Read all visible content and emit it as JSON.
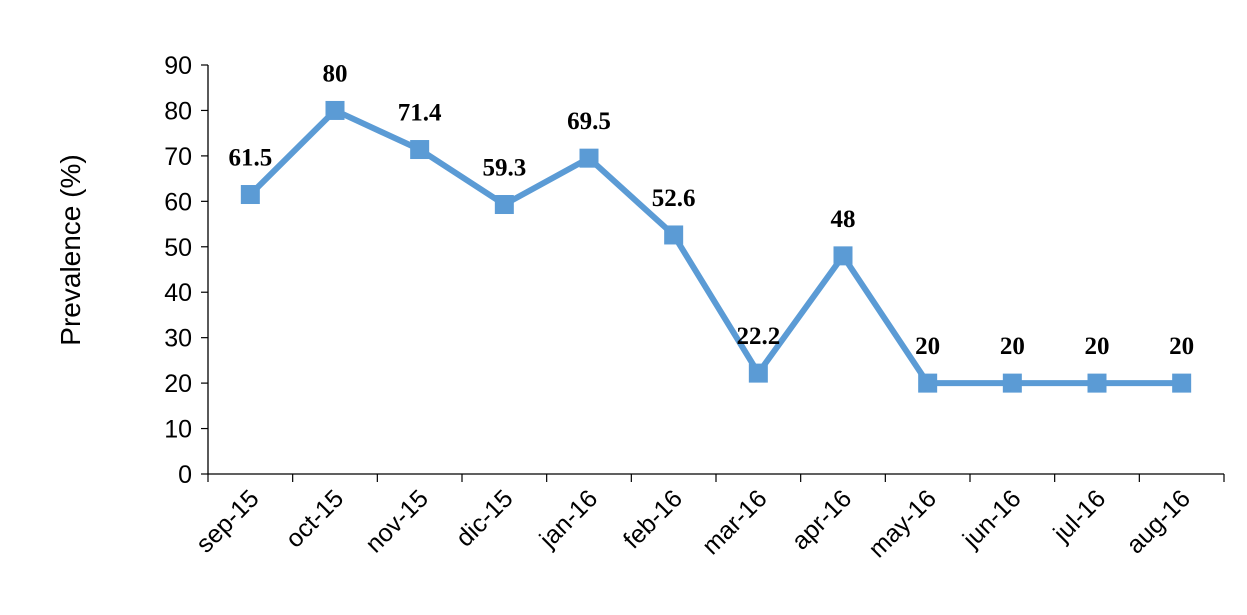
{
  "chart_data": {
    "type": "line",
    "title": "",
    "xlabel": "",
    "ylabel": "Prevalence (%)",
    "ylim": [
      0,
      90
    ],
    "yticks": [
      "0",
      "10",
      "20",
      "30",
      "40",
      "50",
      "60",
      "70",
      "80",
      "90"
    ],
    "categories": [
      "sep-15",
      "oct-15",
      "nov-15",
      "dic-15",
      "jan-16",
      "feb-16",
      "mar-16",
      "apr-16",
      "may-16",
      "jun-16",
      "jul-16",
      "aug-16"
    ],
    "series": [
      {
        "values": [
          61.5,
          80,
          71.4,
          59.3,
          69.5,
          52.6,
          22.2,
          48,
          20,
          20,
          20,
          20
        ],
        "labels": [
          "61.5",
          "80",
          "71.4",
          "59.3",
          "69.5",
          "52.6",
          "22.2",
          "48",
          "20",
          "20",
          "20",
          "20"
        ],
        "color": "#5B9BD5",
        "marker": "square"
      }
    ],
    "grid": false,
    "legend": "none"
  }
}
